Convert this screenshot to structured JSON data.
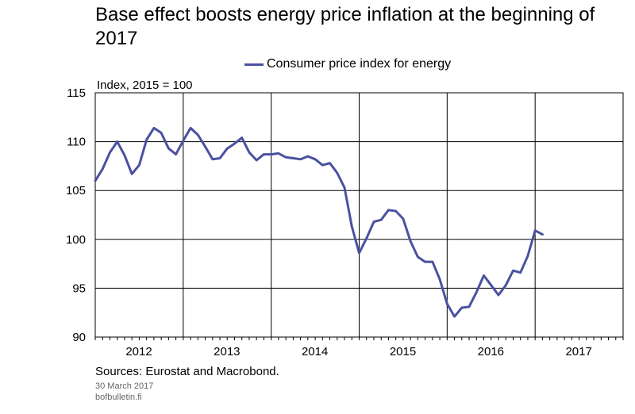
{
  "header": {
    "title": "Base effect boosts energy price inflation at the beginning of 2017"
  },
  "footer": {
    "sources": "Sources: Eurostat and Macrobond.",
    "date": "30 March 2017",
    "site": "bofbulletin.fi"
  },
  "chart_data": {
    "type": "line",
    "title": "Base effect boosts energy price inflation at the beginning of 2017",
    "ylabel": "Index, 2015 = 100",
    "xlabel": "",
    "ylim": [
      90,
      115
    ],
    "xlim": [
      "2012-01",
      "2018-01"
    ],
    "yticks": [
      90,
      95,
      100,
      105,
      110,
      115
    ],
    "xticks": [
      "2012",
      "2013",
      "2014",
      "2015",
      "2016",
      "2017"
    ],
    "grid": true,
    "legend": "top-center",
    "series": [
      {
        "name": "Consumer price index for energy",
        "color": "#4a51a0",
        "x": [
          "2012-01",
          "2012-02",
          "2012-03",
          "2012-04",
          "2012-05",
          "2012-06",
          "2012-07",
          "2012-08",
          "2012-09",
          "2012-10",
          "2012-11",
          "2012-12",
          "2013-01",
          "2013-02",
          "2013-03",
          "2013-04",
          "2013-05",
          "2013-06",
          "2013-07",
          "2013-08",
          "2013-09",
          "2013-10",
          "2013-11",
          "2013-12",
          "2014-01",
          "2014-02",
          "2014-03",
          "2014-04",
          "2014-05",
          "2014-06",
          "2014-07",
          "2014-08",
          "2014-09",
          "2014-10",
          "2014-11",
          "2014-12",
          "2015-01",
          "2015-02",
          "2015-03",
          "2015-04",
          "2015-05",
          "2015-06",
          "2015-07",
          "2015-08",
          "2015-09",
          "2015-10",
          "2015-11",
          "2015-12",
          "2016-01",
          "2016-02",
          "2016-03",
          "2016-04",
          "2016-05",
          "2016-06",
          "2016-07",
          "2016-08",
          "2016-09",
          "2016-10",
          "2016-11",
          "2016-12",
          "2017-01",
          "2017-02"
        ],
        "values": [
          106.0,
          107.2,
          108.9,
          110.0,
          108.6,
          106.7,
          107.6,
          110.2,
          111.4,
          110.9,
          109.3,
          108.7,
          110.1,
          111.4,
          110.7,
          109.5,
          108.2,
          108.3,
          109.3,
          109.8,
          110.4,
          108.9,
          108.1,
          108.7,
          108.7,
          108.8,
          108.4,
          108.3,
          108.2,
          108.5,
          108.2,
          107.6,
          107.8,
          106.8,
          105.3,
          101.3,
          98.6,
          100.1,
          101.8,
          102.0,
          103.0,
          102.9,
          102.1,
          99.8,
          98.2,
          97.7,
          97.7,
          95.9,
          93.4,
          92.1,
          93.0,
          93.1,
          94.6,
          96.3,
          95.3,
          94.3,
          95.3,
          96.8,
          96.6,
          98.3,
          100.9,
          100.5
        ]
      }
    ]
  }
}
